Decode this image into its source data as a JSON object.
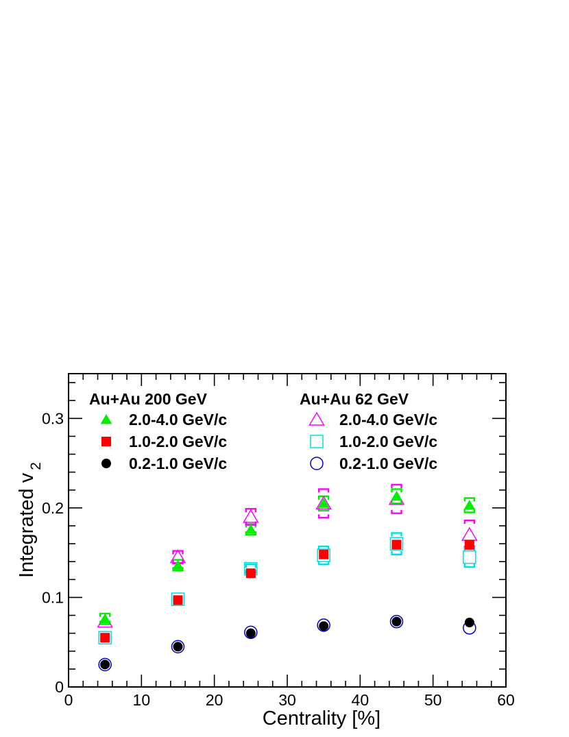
{
  "chart_data": {
    "type": "scatter",
    "title": "",
    "xlabel": "Centrality [%]",
    "ylabel_main": "Integrated v",
    "ylabel_sub": "2",
    "xlim": [
      0,
      60
    ],
    "ylim": [
      0,
      0.35
    ],
    "xticks": [
      0,
      10,
      20,
      30,
      40,
      50,
      60
    ],
    "yticks": [
      0,
      0.1,
      0.2,
      0.3
    ],
    "xtick_labels": [
      "0",
      "10",
      "20",
      "30",
      "40",
      "50",
      "60"
    ],
    "ytick_labels": [
      "0",
      "0.1",
      "0.2",
      "0.3"
    ],
    "grid": false,
    "legend_placement": "top",
    "legend_groups": [
      {
        "heading": "Au+Au 200 GeV"
      },
      {
        "heading": "Au+Au 62 GeV"
      }
    ],
    "x": [
      5,
      15,
      25,
      35,
      45,
      55
    ],
    "series": [
      {
        "name": "2.0-4.0 GeV/c",
        "group": 0,
        "marker": "triangle",
        "filled": true,
        "color": "#00ee00",
        "values": [
          0.076,
          0.136,
          0.176,
          0.205,
          0.213,
          0.203
        ],
        "sys_band": [
          0.006,
          0.006,
          0.006,
          0.008,
          0.008,
          0.008
        ]
      },
      {
        "name": "1.0-2.0 GeV/c",
        "group": 0,
        "marker": "square",
        "filled": true,
        "color": "#ff0000",
        "values": [
          0.055,
          0.097,
          0.127,
          0.148,
          0.159,
          0.159
        ],
        "sys_band": [
          0,
          0,
          0,
          0,
          0,
          0
        ]
      },
      {
        "name": "0.2-1.0 GeV/c",
        "group": 0,
        "marker": "circle",
        "filled": true,
        "color": "#000000",
        "values": [
          0.025,
          0.045,
          0.06,
          0.068,
          0.073,
          0.072
        ],
        "sys_band": [
          0,
          0,
          0,
          0,
          0,
          0
        ]
      },
      {
        "name": "2.0-4.0 GeV/c",
        "group": 1,
        "marker": "triangle",
        "filled": false,
        "color": "#ff00ff",
        "values": [
          0.073,
          0.145,
          0.19,
          0.205,
          0.21,
          0.17
        ],
        "sys_band": [
          0,
          0.007,
          0.009,
          0.016,
          0.016,
          0.016
        ]
      },
      {
        "name": "1.0-2.0 GeV/c",
        "group": 1,
        "marker": "square",
        "filled": false,
        "color": "#00e0e0",
        "values": [
          0.055,
          0.098,
          0.132,
          0.147,
          0.16,
          0.145
        ],
        "sys_band": [
          0,
          0,
          0.005,
          0.01,
          0.012,
          0.011
        ]
      },
      {
        "name": "0.2-1.0 GeV/c",
        "group": 1,
        "marker": "circle",
        "filled": false,
        "color": "#0000cc",
        "values": [
          0.025,
          0.045,
          0.061,
          0.069,
          0.073,
          0.066
        ],
        "sys_band": [
          0,
          0,
          0,
          0,
          0,
          0
        ]
      }
    ]
  }
}
